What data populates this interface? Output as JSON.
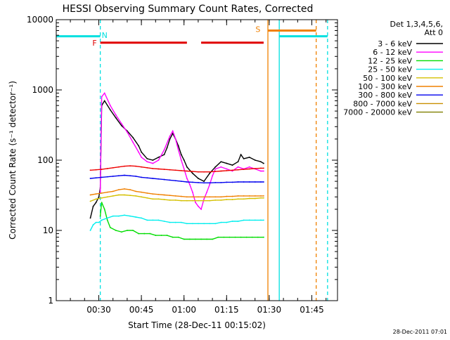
{
  "chart_data": {
    "type": "line",
    "title": "HESSI Observing Summary Count Rates, Corrected",
    "xlabel": "Start Time (28-Dec-11 00:15:02)",
    "ylabel": "Corrected Count Rate (s⁻¹ detector⁻¹)",
    "y_scale": "log",
    "ylim": [
      1,
      10000
    ],
    "xlim_minutes_since_start": [
      0,
      99
    ],
    "x_tick_labels": [
      "00:30",
      "00:45",
      "01:00",
      "01:15",
      "01:30",
      "01:45"
    ],
    "x_tick_minutes_since_start": [
      14.97,
      29.97,
      44.97,
      59.97,
      74.97,
      89.97
    ],
    "y_tick_labels": [
      "1",
      "10",
      "100",
      "1000",
      "10000"
    ],
    "y_tick_values": [
      1,
      10,
      100,
      1000,
      10000
    ],
    "legend": {
      "header_lines": [
        "Det 1,3,4,5,6,",
        "Att 0"
      ],
      "position": "right"
    },
    "timestamp": "28-Dec-2011 07:01",
    "flag_labels": [
      {
        "text": "F",
        "color": "#e00000",
        "x": 13.5,
        "y": 4700
      },
      {
        "text": "N",
        "color": "#00e0e0",
        "x": 17.0,
        "y": 6000
      },
      {
        "text": "S",
        "color": "#f08000",
        "x": 71.0,
        "y": 7300
      }
    ],
    "flag_segments": [
      {
        "name": "F",
        "color": "#e00000",
        "y": 4700,
        "ranges": [
          [
            15.5,
            46
          ],
          [
            51,
            73
          ]
        ]
      },
      {
        "name": "night",
        "color": "#00e0e0",
        "y": 5800,
        "ranges": [
          [
            0,
            15.5
          ],
          [
            78.5,
            95.5
          ]
        ]
      },
      {
        "name": "saa",
        "color": "#f08000",
        "y": 7000,
        "ranges": [
          [
            74.5,
            91.5
          ]
        ]
      }
    ],
    "vlines": [
      {
        "x": 15.5,
        "color": "#00e0e0",
        "style": "dashed"
      },
      {
        "x": 78.5,
        "color": "#00e0e0",
        "style": "solid"
      },
      {
        "x": 95.5,
        "color": "#00e0e0",
        "style": "dashed"
      },
      {
        "x": 74.5,
        "color": "#f08000",
        "style": "solid"
      },
      {
        "x": 91.5,
        "color": "#f08000",
        "style": "dashed"
      }
    ],
    "series": [
      {
        "name": "3 - 6 keV",
        "color": "#000000",
        "points": [
          [
            12,
            15
          ],
          [
            13,
            22
          ],
          [
            14,
            25
          ],
          [
            15,
            30
          ],
          [
            15.5,
            40
          ],
          [
            16,
            600
          ],
          [
            17,
            700
          ],
          [
            19,
            520
          ],
          [
            21,
            400
          ],
          [
            23,
            310
          ],
          [
            25,
            260
          ],
          [
            27,
            210
          ],
          [
            29,
            160
          ],
          [
            30,
            130
          ],
          [
            32,
            105
          ],
          [
            34,
            100
          ],
          [
            36,
            110
          ],
          [
            38,
            120
          ],
          [
            39,
            150
          ],
          [
            40,
            200
          ],
          [
            41,
            240
          ],
          [
            42,
            200
          ],
          [
            43,
            160
          ],
          [
            44,
            120
          ],
          [
            45,
            100
          ],
          [
            46,
            80
          ],
          [
            48,
            65
          ],
          [
            50,
            55
          ],
          [
            52,
            50
          ],
          [
            54,
            65
          ],
          [
            56,
            80
          ],
          [
            58,
            95
          ],
          [
            60,
            90
          ],
          [
            62,
            85
          ],
          [
            64,
            95
          ],
          [
            65,
            120
          ],
          [
            66,
            105
          ],
          [
            68,
            110
          ],
          [
            70,
            100
          ],
          [
            72,
            95
          ],
          [
            73,
            90
          ]
        ]
      },
      {
        "name": "6 - 12 keV",
        "color": "#ff00ff",
        "points": [
          [
            15.5,
            35
          ],
          [
            16,
            800
          ],
          [
            17,
            900
          ],
          [
            19,
            600
          ],
          [
            21,
            440
          ],
          [
            23,
            330
          ],
          [
            25,
            250
          ],
          [
            27,
            180
          ],
          [
            29,
            130
          ],
          [
            30,
            110
          ],
          [
            32,
            95
          ],
          [
            34,
            90
          ],
          [
            36,
            100
          ],
          [
            38,
            140
          ],
          [
            40,
            220
          ],
          [
            41,
            260
          ],
          [
            42,
            200
          ],
          [
            43,
            140
          ],
          [
            44,
            100
          ],
          [
            45,
            75
          ],
          [
            46,
            55
          ],
          [
            47,
            45
          ],
          [
            48,
            35
          ],
          [
            49,
            25
          ],
          [
            50,
            22
          ],
          [
            51,
            20
          ],
          [
            52,
            28
          ],
          [
            53,
            35
          ],
          [
            54,
            45
          ],
          [
            55,
            60
          ],
          [
            56,
            75
          ],
          [
            58,
            80
          ],
          [
            60,
            75
          ],
          [
            62,
            70
          ],
          [
            64,
            80
          ],
          [
            66,
            75
          ],
          [
            68,
            80
          ],
          [
            70,
            75
          ],
          [
            72,
            70
          ],
          [
            73,
            70
          ]
        ]
      },
      {
        "name": "12 - 25 keV",
        "color": "#00dd00",
        "points": [
          [
            15.5,
            16
          ],
          [
            16,
            25
          ],
          [
            17,
            20
          ],
          [
            18,
            14
          ],
          [
            19,
            11
          ],
          [
            21,
            10
          ],
          [
            23,
            9.5
          ],
          [
            25,
            10
          ],
          [
            27,
            10
          ],
          [
            29,
            9
          ],
          [
            31,
            9
          ],
          [
            33,
            9
          ],
          [
            35,
            8.5
          ],
          [
            37,
            8.5
          ],
          [
            39,
            8.5
          ],
          [
            41,
            8
          ],
          [
            43,
            8
          ],
          [
            45,
            7.5
          ],
          [
            47,
            7.5
          ],
          [
            49,
            7.5
          ],
          [
            51,
            7.5
          ],
          [
            53,
            7.5
          ],
          [
            55,
            7.5
          ],
          [
            57,
            8
          ],
          [
            59,
            8
          ],
          [
            61,
            8
          ],
          [
            63,
            8
          ],
          [
            65,
            8
          ],
          [
            67,
            8
          ],
          [
            69,
            8
          ],
          [
            71,
            8
          ],
          [
            73,
            8
          ]
        ]
      },
      {
        "name": "25 - 50 keV",
        "color": "#00eeee",
        "points": [
          [
            12,
            10
          ],
          [
            13,
            12
          ],
          [
            14,
            13
          ],
          [
            15,
            13
          ],
          [
            16,
            14
          ],
          [
            18,
            15
          ],
          [
            20,
            16
          ],
          [
            22,
            16
          ],
          [
            24,
            16.5
          ],
          [
            26,
            16
          ],
          [
            28,
            15.5
          ],
          [
            30,
            15
          ],
          [
            32,
            14
          ],
          [
            34,
            14
          ],
          [
            36,
            14
          ],
          [
            38,
            13.5
          ],
          [
            40,
            13
          ],
          [
            42,
            13
          ],
          [
            44,
            13
          ],
          [
            46,
            12.5
          ],
          [
            48,
            12.5
          ],
          [
            50,
            12.5
          ],
          [
            52,
            12.5
          ],
          [
            54,
            12.5
          ],
          [
            56,
            12.5
          ],
          [
            58,
            13
          ],
          [
            60,
            13
          ],
          [
            62,
            13.5
          ],
          [
            64,
            13.5
          ],
          [
            66,
            14
          ],
          [
            68,
            14
          ],
          [
            70,
            14
          ],
          [
            72,
            14
          ],
          [
            73,
            14
          ]
        ]
      },
      {
        "name": "50 - 100 keV",
        "color": "#d4c000",
        "points": [
          [
            12,
            26
          ],
          [
            14,
            28
          ],
          [
            16,
            29
          ],
          [
            18,
            30
          ],
          [
            20,
            31
          ],
          [
            22,
            32
          ],
          [
            24,
            32
          ],
          [
            26,
            31.5
          ],
          [
            28,
            31
          ],
          [
            30,
            30
          ],
          [
            32,
            29
          ],
          [
            34,
            28
          ],
          [
            36,
            28
          ],
          [
            38,
            27.5
          ],
          [
            40,
            27
          ],
          [
            42,
            27
          ],
          [
            44,
            26.5
          ],
          [
            46,
            26.5
          ],
          [
            48,
            26.5
          ],
          [
            50,
            26.5
          ],
          [
            52,
            26.5
          ],
          [
            54,
            26.5
          ],
          [
            56,
            27
          ],
          [
            58,
            27
          ],
          [
            60,
            27.5
          ],
          [
            62,
            27.5
          ],
          [
            64,
            28
          ],
          [
            66,
            28
          ],
          [
            68,
            28.5
          ],
          [
            70,
            28.5
          ],
          [
            72,
            29
          ],
          [
            73,
            29
          ]
        ]
      },
      {
        "name": "100 - 300 keV",
        "color": "#f08000",
        "points": [
          [
            12,
            32
          ],
          [
            14,
            33
          ],
          [
            16,
            34
          ],
          [
            18,
            35
          ],
          [
            20,
            36
          ],
          [
            22,
            38
          ],
          [
            24,
            39
          ],
          [
            26,
            38
          ],
          [
            28,
            36
          ],
          [
            30,
            35
          ],
          [
            32,
            34
          ],
          [
            34,
            33
          ],
          [
            36,
            32.5
          ],
          [
            38,
            32
          ],
          [
            40,
            31.5
          ],
          [
            42,
            31
          ],
          [
            44,
            30.5
          ],
          [
            46,
            30
          ],
          [
            48,
            30
          ],
          [
            50,
            30
          ],
          [
            52,
            30
          ],
          [
            54,
            30
          ],
          [
            56,
            30
          ],
          [
            58,
            30
          ],
          [
            60,
            30.5
          ],
          [
            62,
            30.5
          ],
          [
            64,
            31
          ],
          [
            66,
            31
          ],
          [
            68,
            31
          ],
          [
            70,
            31
          ],
          [
            72,
            31
          ],
          [
            73,
            31
          ]
        ]
      },
      {
        "name": "300 - 800 keV",
        "color": "#0000ee",
        "points": [
          [
            12,
            55
          ],
          [
            14,
            56
          ],
          [
            16,
            57
          ],
          [
            18,
            58
          ],
          [
            20,
            59
          ],
          [
            22,
            60
          ],
          [
            24,
            61
          ],
          [
            26,
            60
          ],
          [
            28,
            59
          ],
          [
            30,
            57
          ],
          [
            32,
            56
          ],
          [
            34,
            55
          ],
          [
            36,
            54
          ],
          [
            38,
            53
          ],
          [
            40,
            52
          ],
          [
            42,
            51
          ],
          [
            44,
            50
          ],
          [
            46,
            49
          ],
          [
            48,
            48.5
          ],
          [
            50,
            48
          ],
          [
            52,
            47.5
          ],
          [
            54,
            47.5
          ],
          [
            56,
            48
          ],
          [
            58,
            48
          ],
          [
            60,
            48.5
          ],
          [
            62,
            48.5
          ],
          [
            64,
            49
          ],
          [
            66,
            49
          ],
          [
            68,
            49
          ],
          [
            70,
            49
          ],
          [
            72,
            49
          ],
          [
            73,
            49
          ]
        ]
      },
      {
        "name": "800 - 7000 keV",
        "color": "#c89000",
        "points": []
      },
      {
        "name": "7000 - 20000 keV",
        "color": "#808000",
        "points": []
      },
      {
        "name": "800-7000 (F)",
        "color": "#ee0000",
        "legend": false,
        "points": [
          [
            12,
            72
          ],
          [
            14,
            73
          ],
          [
            16,
            74
          ],
          [
            18,
            76
          ],
          [
            20,
            78
          ],
          [
            22,
            80
          ],
          [
            24,
            82
          ],
          [
            26,
            83
          ],
          [
            28,
            82
          ],
          [
            30,
            80
          ],
          [
            32,
            78
          ],
          [
            34,
            76
          ],
          [
            36,
            75
          ],
          [
            38,
            74
          ],
          [
            40,
            73
          ],
          [
            42,
            72
          ],
          [
            44,
            71
          ],
          [
            46,
            70
          ],
          [
            48,
            69
          ],
          [
            50,
            68
          ],
          [
            52,
            68
          ],
          [
            54,
            68
          ],
          [
            56,
            69
          ],
          [
            58,
            70
          ],
          [
            60,
            71
          ],
          [
            62,
            72
          ],
          [
            64,
            73
          ],
          [
            66,
            74
          ],
          [
            68,
            75
          ],
          [
            70,
            76
          ],
          [
            72,
            77
          ],
          [
            73,
            77
          ]
        ]
      }
    ]
  }
}
